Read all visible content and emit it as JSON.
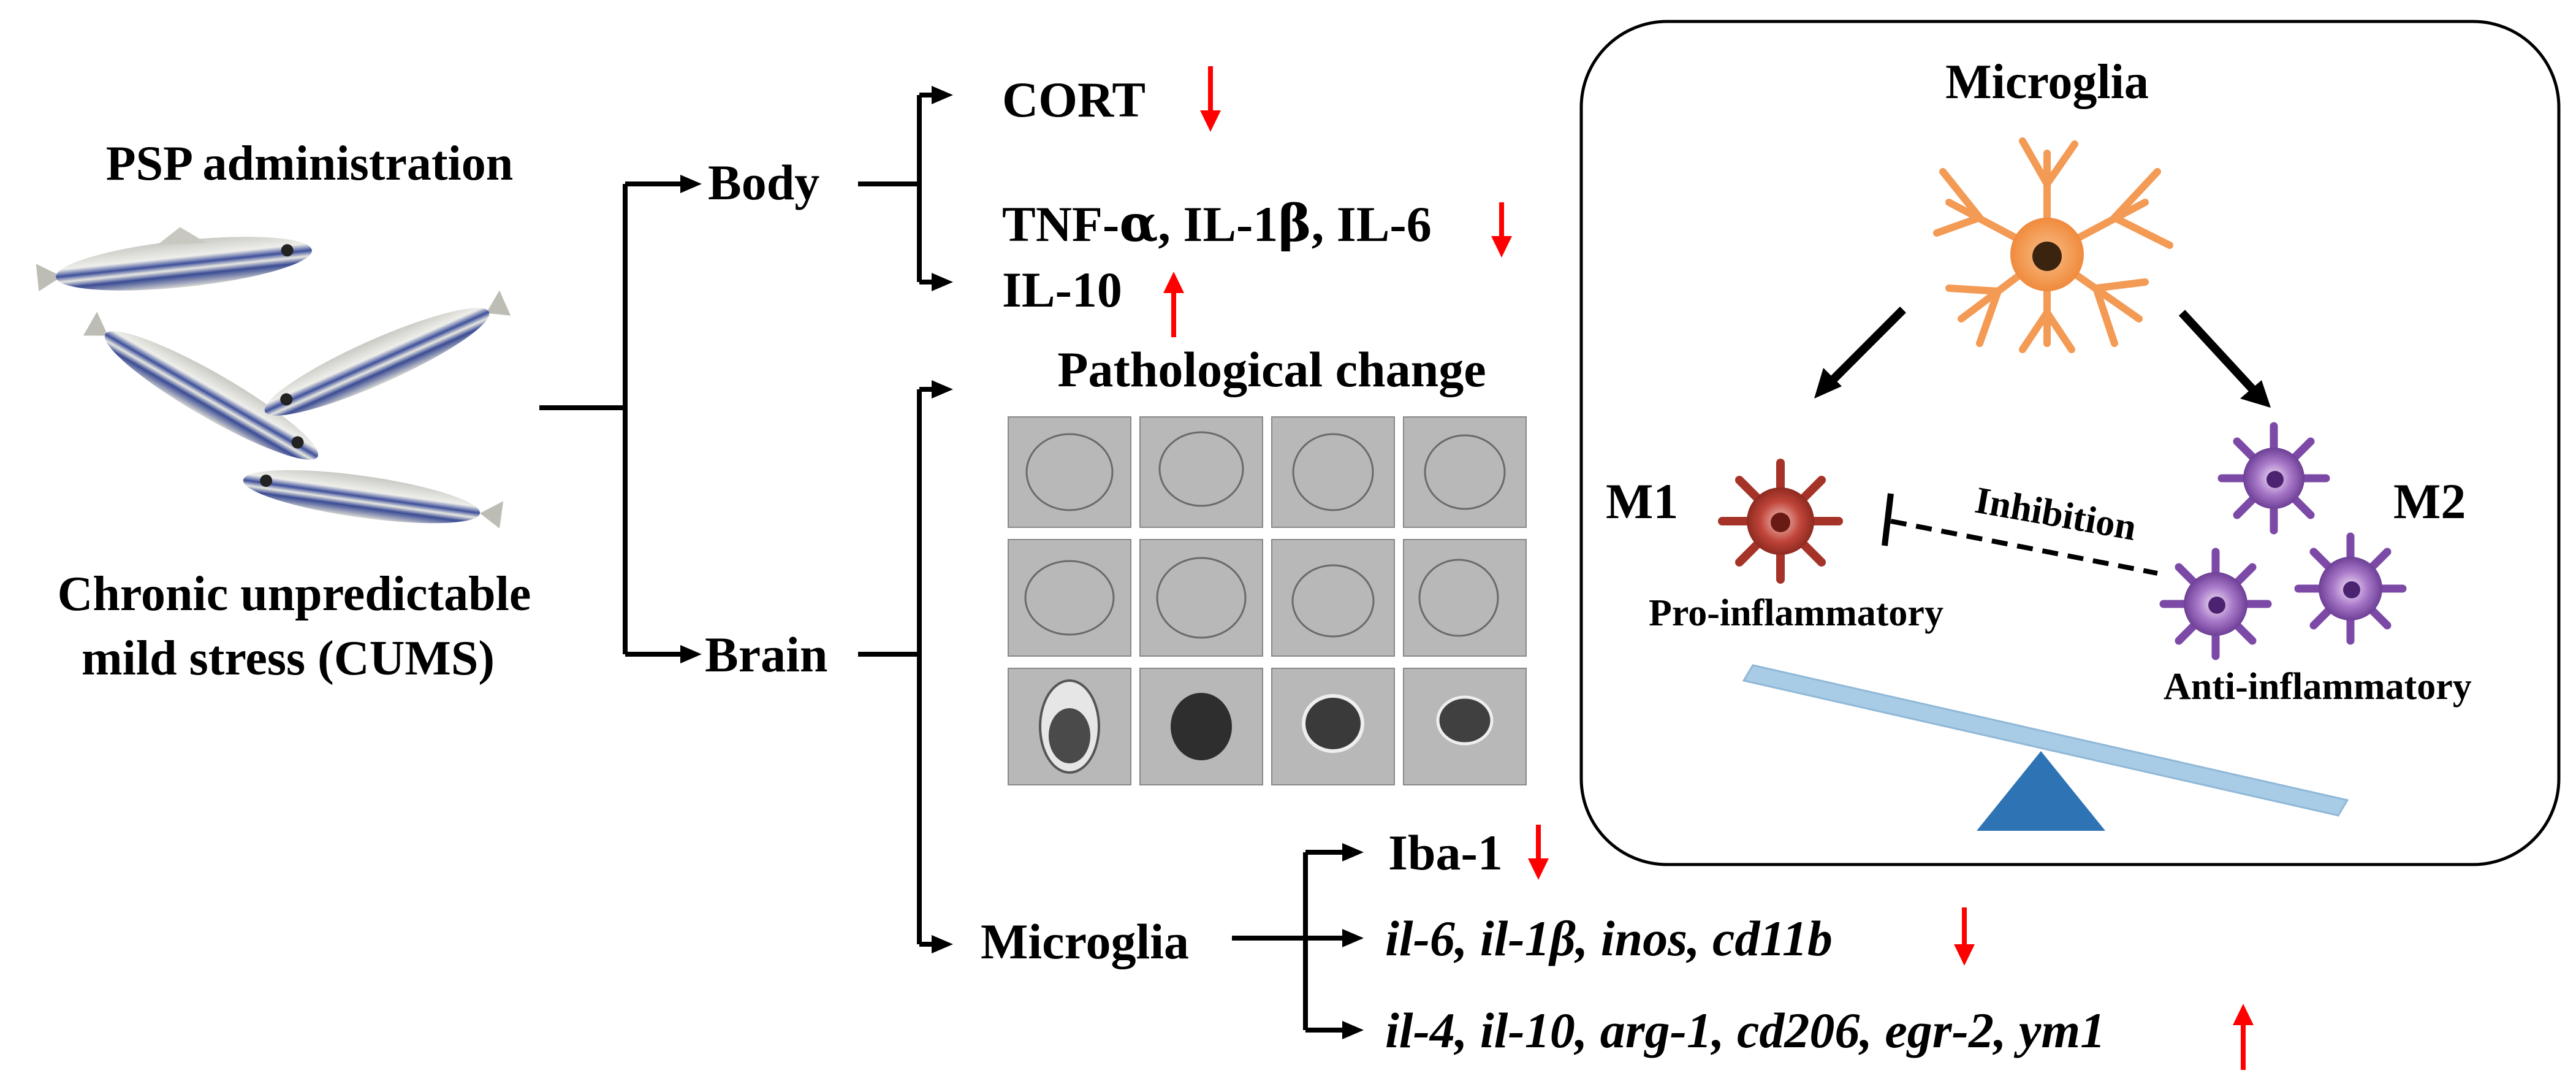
{
  "left": {
    "intervention": "PSP administration",
    "model_line1": "Chronic unpredictable",
    "model_line2": "mild stress (CUMS)"
  },
  "branches": {
    "body": "Body",
    "brain": "Brain",
    "microglia": "Microglia"
  },
  "body_outcomes": {
    "cort": "CORT",
    "pro_cytokines_part1": "TNF-",
    "pro_cytokines_alpha": "α",
    "pro_cytokines_part2": ", IL-1",
    "pro_cytokines_beta": "β",
    "pro_cytokines_part3": ", IL-6",
    "il10": "IL-10"
  },
  "brain_outcome": {
    "title": "Pathological change"
  },
  "microglia_outcomes": {
    "iba1": "Iba-1",
    "m1_genes": "il-6, il-1β, inos, cd11b",
    "m2_genes": "il-4, il-10, arg-1, cd206, egr-2, ym1"
  },
  "panel": {
    "title": "Microglia",
    "m1_label": "M1",
    "m2_label": "M2",
    "m1_desc": "Pro-inflammatory",
    "m2_desc": "Anti-inflammatory",
    "inhibition": "Inhibition"
  },
  "colors": {
    "arrow_down": "#ff0000",
    "arrow_up": "#ff0000",
    "seesaw_beam": "#a9cce6",
    "seesaw_fulcrum": "#2e74b5",
    "microglia_body": "#f4a15a",
    "m1_cell": "#b33a2e",
    "m2_cell": "#8a52b0"
  }
}
